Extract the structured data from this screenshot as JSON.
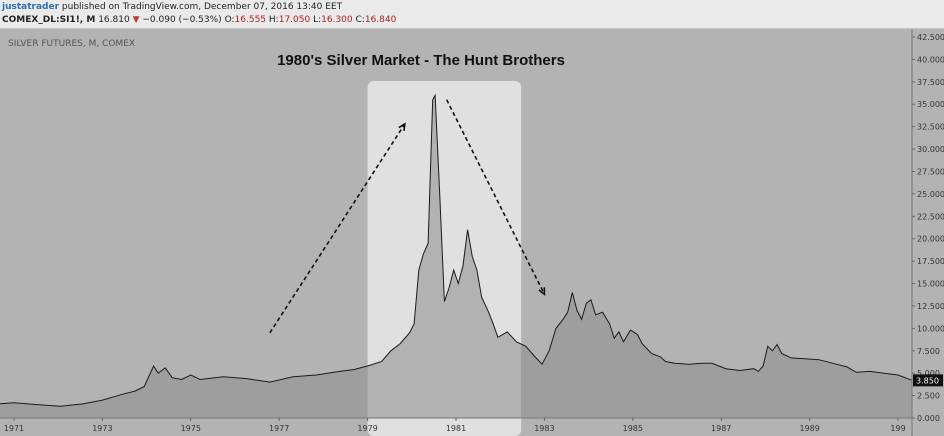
{
  "header": {
    "author": "justatrader",
    "published": "published on TradingView.com, December 07, 2016 13:40 EET",
    "symbol": "COMEX_DL:SI1!, M",
    "last": "16.810",
    "change_arrow": "▼",
    "change": "−0.090 (−0.53%)",
    "o_label": "O:",
    "o_value": "16.555",
    "h_label": "H:",
    "h_value": "17.050",
    "l_label": "L:",
    "l_value": "16.300",
    "c_label": "C:",
    "c_value": "16.840"
  },
  "chart_data": {
    "type": "area",
    "title": "1980's Silver Market - The Hunt Brothers",
    "watermark": "SILVER FUTURES, M, COMEX",
    "price_tag": "3.850",
    "x_ticks": [
      "1971",
      "1973",
      "1975",
      "1977",
      "1979",
      "1981",
      "1983",
      "1985",
      "1987",
      "1989",
      "199"
    ],
    "y_ticks": [
      "0.000",
      "2.500",
      "5.000",
      "7.500",
      "10.000",
      "12.500",
      "15.000",
      "17.500",
      "20.000",
      "22.500",
      "25.000",
      "27.500",
      "30.000",
      "32.500",
      "35.000",
      "37.500",
      "40.000",
      "42.500"
    ],
    "xlim": [
      1970.7,
      1990.3
    ],
    "ylim": [
      0,
      42.5
    ],
    "highlight_range": [
      1978.6,
      1981.9
    ],
    "colors": {
      "background": "#b3b3b3",
      "area": "#8c8c8c",
      "line": "#1a1a1a",
      "highlight": "#e8e8e8"
    },
    "x": [
      1970.7,
      1971.0,
      1971.5,
      1972.0,
      1972.5,
      1972.9,
      1973.3,
      1973.6,
      1973.8,
      1974.0,
      1974.1,
      1974.25,
      1974.4,
      1974.6,
      1974.8,
      1975.0,
      1975.5,
      1976.0,
      1976.5,
      1977.0,
      1977.5,
      1978.0,
      1978.3,
      1978.6,
      1978.9,
      1979.1,
      1979.3,
      1979.5,
      1979.6,
      1979.7,
      1979.8,
      1979.9,
      1980.0,
      1980.05,
      1980.15,
      1980.25,
      1980.35,
      1980.45,
      1980.55,
      1980.65,
      1980.75,
      1980.85,
      1980.95,
      1981.05,
      1981.2,
      1981.3,
      1981.4,
      1981.6,
      1981.8,
      1982.0,
      1982.2,
      1982.35,
      1982.5,
      1982.65,
      1982.8,
      1982.9,
      1983.0,
      1983.1,
      1983.2,
      1983.3,
      1983.4,
      1983.5,
      1983.65,
      1983.8,
      1983.9,
      1984.0,
      1984.1,
      1984.25,
      1984.4,
      1984.5,
      1984.7,
      1984.9,
      1985.0,
      1985.2,
      1985.5,
      1985.8,
      1986.0,
      1986.3,
      1986.6,
      1986.9,
      1987.0,
      1987.1,
      1987.2,
      1987.3,
      1987.4,
      1987.5,
      1987.7,
      1988.0,
      1988.3,
      1988.6,
      1988.9,
      1989.1,
      1989.4,
      1989.7,
      1990.0,
      1990.3
    ],
    "values": [
      1.6,
      1.7,
      1.5,
      1.3,
      1.6,
      2.0,
      2.6,
      3.0,
      3.5,
      5.8,
      5.0,
      5.6,
      4.5,
      4.3,
      4.8,
      4.3,
      4.6,
      4.4,
      4.0,
      4.6,
      4.8,
      5.2,
      5.4,
      5.8,
      6.3,
      7.5,
      8.3,
      9.5,
      10.5,
      16.5,
      18.3,
      19.5,
      35.5,
      36.0,
      25.0,
      13.0,
      14.5,
      16.5,
      15.0,
      17.0,
      21.0,
      18.0,
      16.5,
      13.5,
      11.8,
      10.5,
      9.0,
      9.6,
      8.5,
      8.0,
      6.8,
      6.0,
      7.5,
      10.0,
      11.0,
      11.8,
      14.0,
      12.0,
      11.0,
      12.8,
      13.2,
      11.5,
      11.8,
      10.5,
      8.9,
      9.6,
      8.5,
      9.8,
      9.3,
      8.3,
      7.2,
      6.8,
      6.3,
      6.1,
      6.0,
      6.1,
      6.1,
      5.5,
      5.3,
      5.5,
      5.2,
      5.8,
      8.0,
      7.5,
      8.2,
      7.2,
      6.7,
      6.6,
      6.5,
      6.1,
      5.7,
      5.1,
      5.2,
      5.0,
      4.8,
      4.2
    ]
  },
  "annotations": {
    "arrows": [
      {
        "from": [
          1976.5,
          9.5
        ],
        "to": [
          1979.4,
          32.8
        ]
      },
      {
        "from": [
          1980.3,
          35.5
        ],
        "to": [
          1982.4,
          13.8
        ]
      }
    ]
  }
}
